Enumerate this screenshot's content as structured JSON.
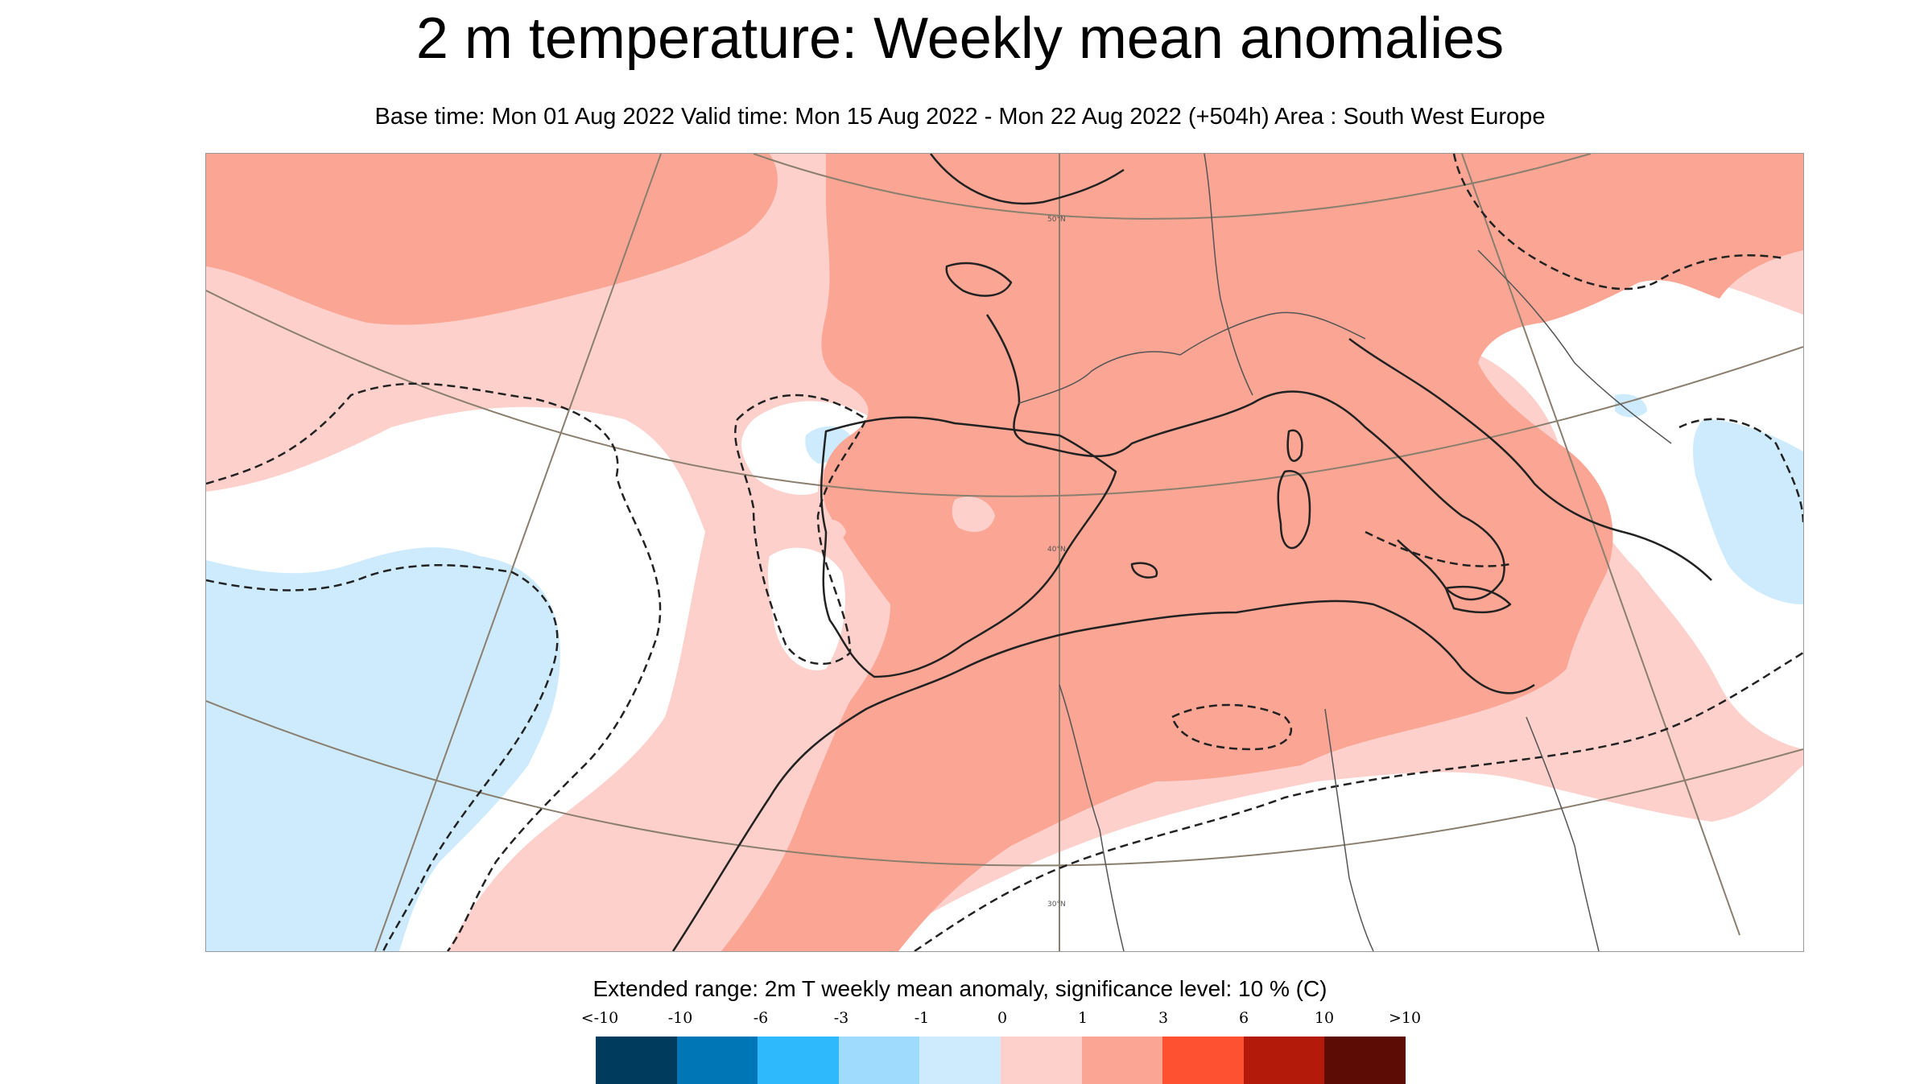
{
  "title": "2 m temperature: Weekly mean anomalies",
  "subtitle": "Base time: Mon 01 Aug 2022 Valid time: Mon 15 Aug 2022 - Mon 22 Aug 2022 (+504h) Area : South West Europe",
  "map": {
    "lat_labels": [
      "50°N",
      "40°N",
      "30°N"
    ],
    "colors": {
      "anomaly_0_to_1": "#fdd0cc",
      "anomaly_1_to_3": "#fba594",
      "anomaly_-1_to_0": "#cdebfd",
      "neutral": "#ffffff",
      "coastline": "#222222",
      "graticule": "#8a7f6e"
    }
  },
  "legend": {
    "title": "Extended range: 2m T weekly mean anomaly, significance level: 10 % (C)",
    "ticks": [
      "<-10",
      "-10",
      "-6",
      "-3",
      "-1",
      "0",
      "1",
      "3",
      "6",
      "10",
      ">10"
    ],
    "colors": [
      "#003a5c",
      "#0076b6",
      "#2eb9fd",
      "#9edbfd",
      "#cdebfd",
      "#fdd0cc",
      "#fba594",
      "#fd5132",
      "#b31a0a",
      "#5c0b05"
    ]
  }
}
